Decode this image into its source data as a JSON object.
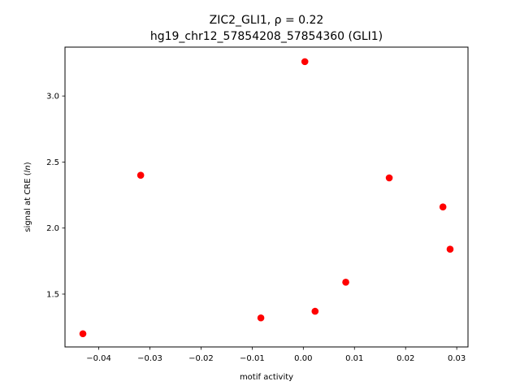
{
  "chart_data": {
    "type": "scatter",
    "title_line1": "ZIC2_GLI1, ρ = 0.22",
    "title_line2": "hg19_chr12_57854208_57854360 (GLI1)",
    "xlabel": "motif activity",
    "ylabel_prefix": "signal at CRE (",
    "ylabel_italic": "ln",
    "ylabel_suffix": ")",
    "xlim": [
      -0.0466,
      0.0322
    ],
    "ylim": [
      1.1,
      3.37
    ],
    "xticks": [
      -0.04,
      -0.03,
      -0.02,
      -0.01,
      0.0,
      0.01,
      0.02,
      0.03
    ],
    "xtick_labels": [
      "−0.04",
      "−0.03",
      "−0.02",
      "−0.01",
      "0.00",
      "0.01",
      "0.02",
      "0.03"
    ],
    "yticks": [
      1.5,
      2.0,
      2.5,
      3.0
    ],
    "ytick_labels": [
      "1.5",
      "2.0",
      "2.5",
      "3.0"
    ],
    "grid": false,
    "marker_color": "#ff0000",
    "points": [
      {
        "x": -0.0431,
        "y": 1.2
      },
      {
        "x": -0.0318,
        "y": 2.4
      },
      {
        "x": -0.0083,
        "y": 1.32
      },
      {
        "x": 0.0003,
        "y": 3.26
      },
      {
        "x": 0.0023,
        "y": 1.37
      },
      {
        "x": 0.0083,
        "y": 1.59
      },
      {
        "x": 0.0168,
        "y": 2.38
      },
      {
        "x": 0.0273,
        "y": 2.16
      },
      {
        "x": 0.0287,
        "y": 1.84
      }
    ]
  }
}
